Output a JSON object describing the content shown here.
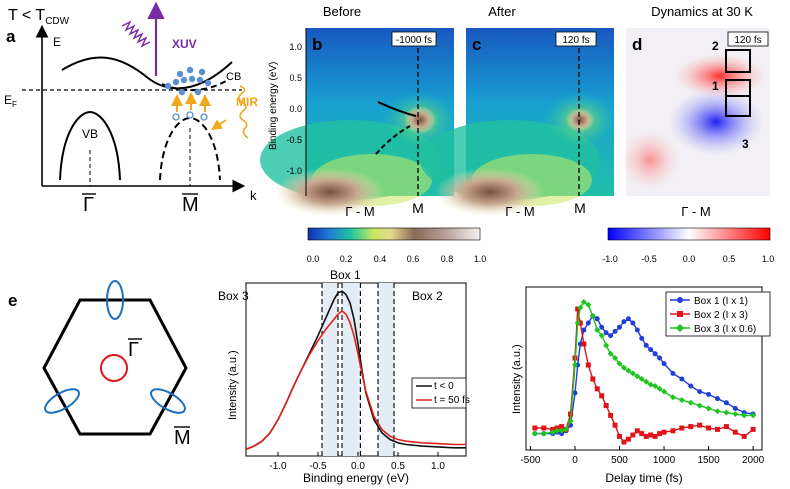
{
  "panel_a": {
    "letter": "a",
    "condition": "T < T",
    "condition_sub": "CDW",
    "energy_label": "E",
    "fermi_label": "E",
    "fermi_sub": "F",
    "k_label": "k",
    "vb_label": "VB",
    "cb_label": "CB",
    "xuv_label": "XUV",
    "mir_label": "MIR",
    "gamma_label": "Γ",
    "m_label": "M"
  },
  "panel_b": {
    "letter": "b",
    "title": "Before",
    "time_tag": "-1000 fs",
    "ylabel": "Binding energy (eV)",
    "yticks": [
      "1.0",
      "0.5",
      "0.0",
      "-0.5",
      "-1.0"
    ],
    "xlabel": "Γ - M",
    "m_label": "M"
  },
  "panel_c": {
    "letter": "c",
    "title": "After",
    "time_tag": "120 fs",
    "xlabel": "Γ - M",
    "m_label": "M"
  },
  "panel_d": {
    "letter": "d",
    "title": "Dynamics at 30 K",
    "time_tag": "120 fs",
    "box_labels": [
      "2",
      "1",
      "3"
    ],
    "xlabel": "Γ - M"
  },
  "colorbar_left": {
    "ticks": [
      "0.0",
      "0.2",
      "0.4",
      "0.6",
      "0.8",
      "1.0"
    ]
  },
  "colorbar_right": {
    "ticks": [
      "-1.0",
      "-0.5",
      "0.0",
      "0.5",
      "1.0"
    ]
  },
  "panel_e": {
    "letter": "e",
    "gamma_label": "Γ",
    "m_label": "M"
  },
  "panel_f": {
    "letter": "f",
    "box_labels": {
      "box1": "Box 1",
      "box2": "Box 2",
      "box3": "Box 3"
    },
    "ylabel": "Intensity (a.u.)",
    "xlabel": "Binding energy (eV)",
    "xticks": [
      "-1.0",
      "-0.5",
      "0.0",
      "0.5",
      "1.0"
    ],
    "legend": [
      "t < 0",
      "t = 50 fs"
    ]
  },
  "panel_g": {
    "letter": "g",
    "ylabel": "Intensity (a.u.)",
    "xlabel": "Delay time (fs)",
    "xticks": [
      "-500",
      "0",
      "500",
      "1000",
      "1500",
      "2000"
    ],
    "legend": [
      "Box 1 (I x 1)",
      "Box 2 (I x 3)",
      "Box 3 (I x 0.6)"
    ]
  },
  "colors": {
    "box1": "#1f3fd6",
    "box2": "#e0131a",
    "box3": "#1fc41f",
    "t_neg": "#111111",
    "t_pos": "#e0201a",
    "xuv": "#7a2aa8",
    "mir": "#f2a81d",
    "pocket": "#1a6fc0",
    "gamma_ring": "#e0131a"
  },
  "chart_data": [
    {
      "type": "line",
      "id": "panel_f",
      "xlabel": "Binding energy (eV)",
      "ylabel": "Intensity (a.u.)",
      "xlim": [
        -1.4,
        1.35
      ],
      "ylim": [
        0,
        1.05
      ],
      "grid": false,
      "series": [
        {
          "name": "t < 0",
          "x": [
            -1.4,
            -1.3,
            -1.2,
            -1.1,
            -1.0,
            -0.9,
            -0.8,
            -0.7,
            -0.6,
            -0.5,
            -0.4,
            -0.3,
            -0.25,
            -0.2,
            -0.15,
            -0.1,
            -0.05,
            0.0,
            0.05,
            0.1,
            0.2,
            0.3,
            0.4,
            0.5,
            0.6,
            0.8,
            1.0,
            1.2,
            1.35
          ],
          "y": [
            0.04,
            0.06,
            0.09,
            0.14,
            0.22,
            0.32,
            0.43,
            0.53,
            0.63,
            0.73,
            0.84,
            0.95,
            0.99,
            1.0,
            0.98,
            0.93,
            0.83,
            0.68,
            0.52,
            0.38,
            0.22,
            0.14,
            0.1,
            0.08,
            0.07,
            0.06,
            0.055,
            0.05,
            0.05
          ]
        },
        {
          "name": "t = 50 fs",
          "x": [
            -1.4,
            -1.3,
            -1.2,
            -1.1,
            -1.0,
            -0.9,
            -0.8,
            -0.7,
            -0.6,
            -0.5,
            -0.4,
            -0.3,
            -0.25,
            -0.2,
            -0.15,
            -0.1,
            -0.05,
            0.0,
            0.05,
            0.1,
            0.2,
            0.3,
            0.4,
            0.5,
            0.6,
            0.8,
            1.0,
            1.2,
            1.35
          ],
          "y": [
            0.04,
            0.06,
            0.09,
            0.14,
            0.22,
            0.32,
            0.43,
            0.53,
            0.62,
            0.7,
            0.77,
            0.83,
            0.86,
            0.88,
            0.86,
            0.81,
            0.73,
            0.62,
            0.5,
            0.39,
            0.24,
            0.16,
            0.12,
            0.1,
            0.09,
            0.08,
            0.075,
            0.07,
            0.07
          ]
        }
      ],
      "shaded_boxes": [
        {
          "name": "Box 3",
          "range": [
            -0.45,
            -0.25
          ]
        },
        {
          "name": "Box 1",
          "range": [
            -0.2,
            0.03
          ]
        },
        {
          "name": "Box 2",
          "range": [
            0.25,
            0.45
          ]
        }
      ]
    },
    {
      "type": "line",
      "id": "panel_g",
      "xlabel": "Delay time (fs)",
      "ylabel": "Intensity (a.u.)",
      "xlim": [
        -550,
        2100
      ],
      "ylim": [
        0,
        1.05
      ],
      "grid": false,
      "series": [
        {
          "name": "Box 1 (I x 1)",
          "x": [
            -450,
            -350,
            -250,
            -200,
            -150,
            -100,
            -50,
            0,
            30,
            60,
            100,
            150,
            200,
            250,
            300,
            350,
            400,
            450,
            500,
            550,
            600,
            650,
            700,
            750,
            800,
            850,
            900,
            950,
            1000,
            1100,
            1200,
            1300,
            1400,
            1500,
            1600,
            1700,
            1800,
            1900,
            2000
          ],
          "y": [
            0.06,
            0.06,
            0.06,
            0.07,
            0.06,
            0.08,
            0.12,
            0.35,
            0.55,
            0.7,
            0.8,
            0.85,
            0.9,
            0.88,
            0.82,
            0.78,
            0.76,
            0.79,
            0.82,
            0.86,
            0.88,
            0.85,
            0.8,
            0.74,
            0.69,
            0.66,
            0.63,
            0.6,
            0.56,
            0.49,
            0.45,
            0.4,
            0.36,
            0.34,
            0.31,
            0.28,
            0.24,
            0.21,
            0.2
          ]
        },
        {
          "name": "Box 2 (I x 3)",
          "x": [
            -450,
            -350,
            -250,
            -200,
            -150,
            -100,
            -50,
            0,
            30,
            60,
            100,
            150,
            200,
            250,
            300,
            350,
            400,
            450,
            500,
            550,
            600,
            650,
            700,
            750,
            800,
            850,
            900,
            950,
            1000,
            1100,
            1200,
            1300,
            1400,
            1500,
            1600,
            1700,
            1800,
            1900,
            2000
          ],
          "y": [
            0.1,
            0.1,
            0.09,
            0.1,
            0.11,
            0.09,
            0.2,
            0.6,
            0.95,
            0.85,
            0.7,
            0.55,
            0.45,
            0.38,
            0.33,
            0.26,
            0.19,
            0.12,
            0.04,
            0.0,
            0.02,
            0.05,
            0.08,
            0.06,
            0.04,
            0.05,
            0.04,
            0.06,
            0.07,
            0.08,
            0.1,
            0.11,
            0.12,
            0.1,
            0.09,
            0.11,
            0.07,
            0.04,
            0.09
          ]
        },
        {
          "name": "Box 3 (I x 0.6)",
          "x": [
            -450,
            -350,
            -250,
            -200,
            -150,
            -100,
            -50,
            0,
            30,
            60,
            100,
            150,
            200,
            250,
            300,
            350,
            400,
            450,
            500,
            550,
            600,
            650,
            700,
            750,
            800,
            850,
            900,
            950,
            1000,
            1100,
            1200,
            1300,
            1400,
            1500,
            1600,
            1700,
            1800,
            1900,
            2000
          ],
          "y": [
            0.06,
            0.06,
            0.07,
            0.08,
            0.08,
            0.09,
            0.15,
            0.55,
            0.85,
            0.96,
            1.0,
            0.98,
            0.9,
            0.8,
            0.76,
            0.69,
            0.63,
            0.6,
            0.56,
            0.53,
            0.51,
            0.49,
            0.47,
            0.45,
            0.43,
            0.41,
            0.4,
            0.38,
            0.36,
            0.32,
            0.3,
            0.28,
            0.26,
            0.24,
            0.22,
            0.21,
            0.2,
            0.19,
            0.19
          ]
        }
      ]
    }
  ]
}
